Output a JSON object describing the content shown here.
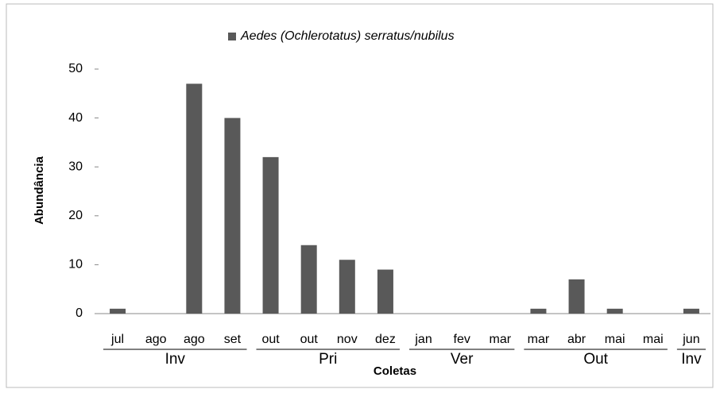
{
  "chart_data": {
    "type": "bar",
    "ylabel": "Abundância",
    "xlabel": "Coletas",
    "categories": [
      "jul",
      "ago",
      "ago",
      "set",
      "out",
      "out",
      "nov",
      "dez",
      "jan",
      "fev",
      "mar",
      "mar",
      "abr",
      "mai",
      "mai",
      "jun"
    ],
    "series": [
      {
        "name": "Aedes (Ochlerotatus) serratus/nubilus",
        "color": "#595959",
        "values": [
          1,
          0,
          47,
          40,
          32,
          14,
          11,
          9,
          0,
          0,
          0,
          1,
          7,
          1,
          0,
          1
        ]
      }
    ],
    "groups": [
      {
        "label": "Inv",
        "span": 4
      },
      {
        "label": "Pri",
        "span": 4
      },
      {
        "label": "Ver",
        "span": 3
      },
      {
        "label": "Out",
        "span": 4
      },
      {
        "label": "Inv",
        "span": 1
      }
    ],
    "ylim": [
      0,
      50
    ],
    "yticks": [
      0,
      10,
      20,
      30,
      40,
      50
    ],
    "legend": "top",
    "grid": false
  }
}
